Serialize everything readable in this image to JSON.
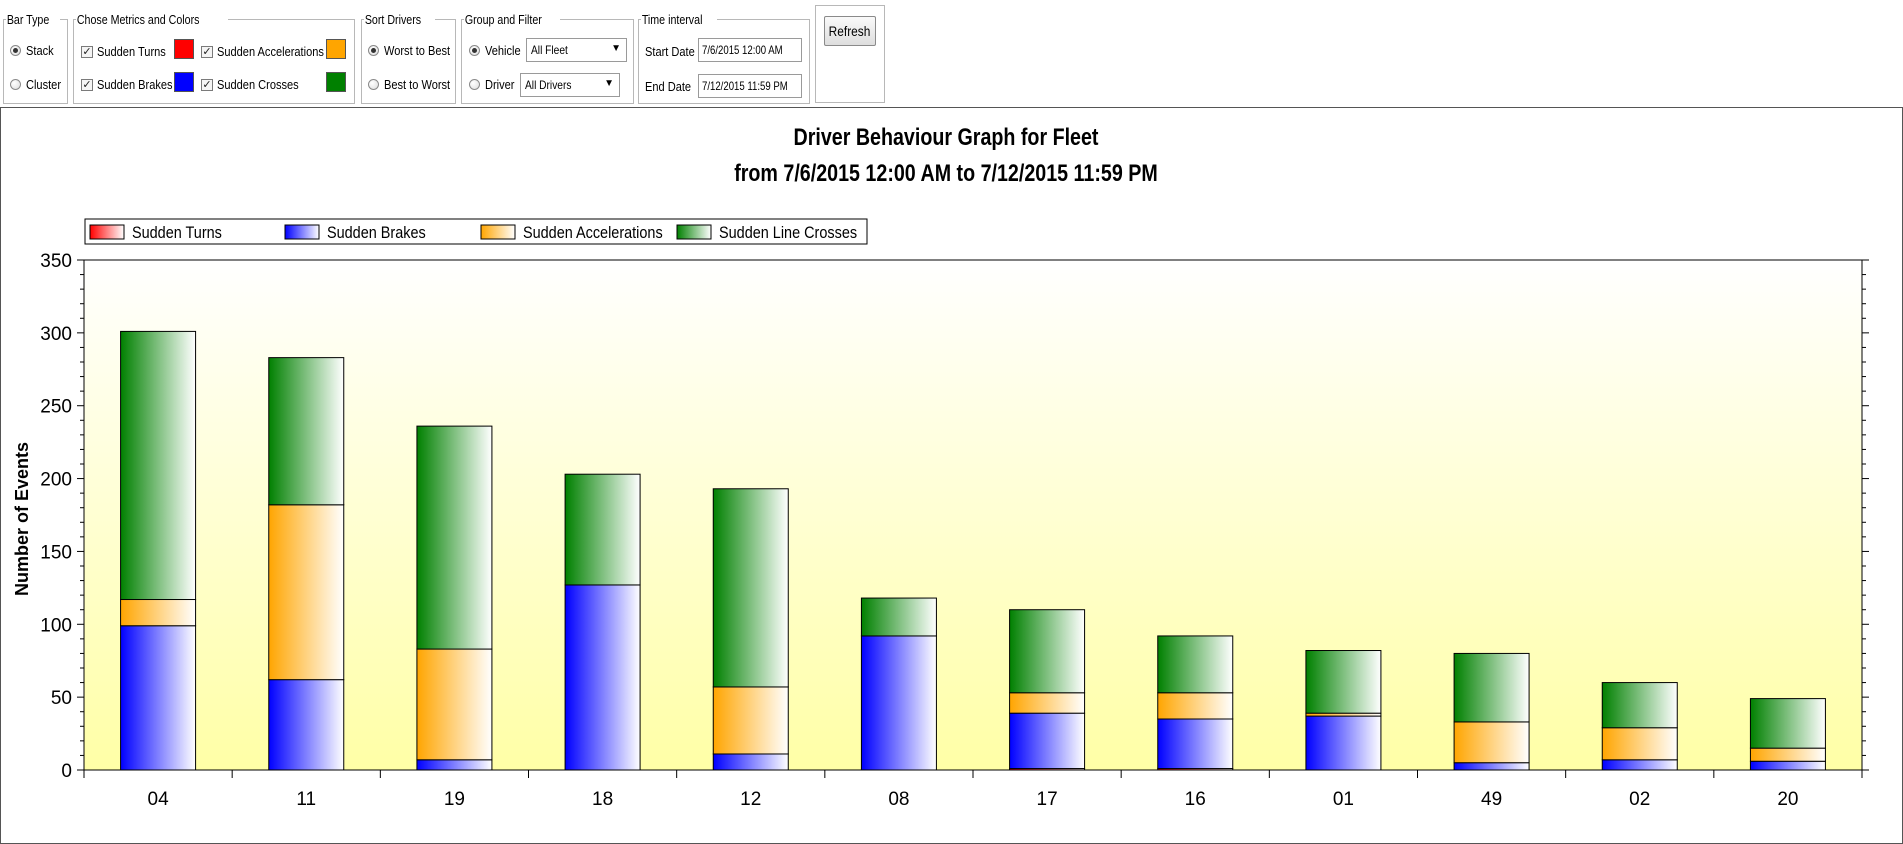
{
  "controls": {
    "bar_type": {
      "legend": "Bar Type",
      "options": [
        {
          "label": "Stack",
          "selected": true
        },
        {
          "label": "Cluster",
          "selected": false
        }
      ]
    },
    "metrics": {
      "legend": "Chose Metrics and Colors",
      "items": [
        {
          "label": "Sudden Turns",
          "checked": true,
          "color": "#ff0000"
        },
        {
          "label": "Sudden Brakes",
          "checked": true,
          "color": "#0000ff"
        },
        {
          "label": "Sudden Accelerations",
          "checked": true,
          "color": "#ffa500"
        },
        {
          "label": "Sudden Crosses",
          "checked": true,
          "color": "#008000"
        }
      ]
    },
    "sort": {
      "legend": "Sort Drivers",
      "options": [
        {
          "label": "Worst to Best",
          "selected": true
        },
        {
          "label": "Best to Worst",
          "selected": false
        }
      ]
    },
    "group": {
      "legend": "Group and Filter",
      "vehicle_label": "Vehicle",
      "vehicle_selected": true,
      "vehicle_value": "All Fleet",
      "driver_label": "Driver",
      "driver_selected": false,
      "driver_value": "All Drivers"
    },
    "time": {
      "legend": "Time interval",
      "start_label": "Start Date",
      "start_value": "7/6/2015 12:00 AM",
      "end_label": "End Date",
      "end_value": "7/12/2015 11:59 PM"
    },
    "refresh_label": "Refresh"
  },
  "chart_data": {
    "type": "bar",
    "stacked": true,
    "title": "Driver Behaviour Graph for Fleet",
    "subtitle": "from 7/6/2015 12:00 AM to 7/12/2015 11:59 PM",
    "xlabel": "",
    "ylabel": "Number of Events",
    "ylim": [
      0,
      350
    ],
    "yticks": [
      0,
      50,
      100,
      150,
      200,
      250,
      300,
      350
    ],
    "grid": false,
    "legend_position": "top-left",
    "background": "yellow gradient",
    "categories": [
      "04",
      "11",
      "19",
      "18",
      "12",
      "08",
      "17",
      "16",
      "01",
      "49",
      "02",
      "20"
    ],
    "series": [
      {
        "name": "Sudden Turns",
        "color": "#ff0000",
        "values": [
          0,
          0,
          0,
          0,
          0,
          0,
          1,
          1,
          0,
          0,
          0,
          0
        ]
      },
      {
        "name": "Sudden Brakes",
        "color": "#0000ff",
        "values": [
          99,
          62,
          7,
          127,
          11,
          92,
          38,
          34,
          37,
          5,
          7,
          6
        ]
      },
      {
        "name": "Sudden Accelerations",
        "color": "#ffa500",
        "values": [
          18,
          120,
          76,
          0,
          46,
          0,
          14,
          18,
          2,
          28,
          22,
          9
        ]
      },
      {
        "name": "Sudden Line Crosses",
        "color": "#008000",
        "values": [
          184,
          101,
          153,
          76,
          136,
          26,
          57,
          39,
          43,
          47,
          31,
          34
        ]
      }
    ]
  }
}
